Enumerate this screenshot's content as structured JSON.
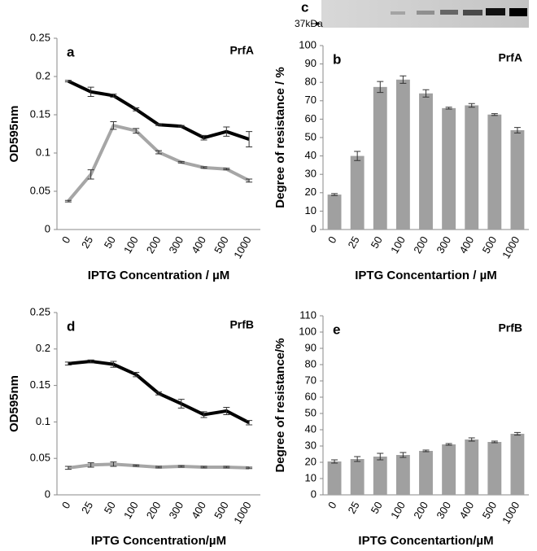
{
  "blot": {
    "panel": "c",
    "marker": "37kDa"
  },
  "chart_data": [
    {
      "type": "line",
      "panel": "a",
      "label": "PrfA",
      "x_label": "IPTG Concentration / µM",
      "y_label": "OD595nm",
      "categories": [
        "0",
        "25",
        "50",
        "100",
        "200",
        "300",
        "400",
        "500",
        "1000"
      ],
      "ylim": [
        0,
        0.25
      ],
      "yticks": [
        0,
        0.05,
        0.1,
        0.15,
        0.2,
        0.25
      ],
      "series": [
        {
          "color": "#000000",
          "values": [
            0.194,
            0.18,
            0.175,
            0.157,
            0.137,
            0.135,
            0.12,
            0.128,
            0.118
          ],
          "errors": [
            0.001,
            0.006,
            0.002,
            0.002,
            0.001,
            0.001,
            0.003,
            0.006,
            0.01
          ]
        },
        {
          "color": "#a6a6a6",
          "values": [
            0.037,
            0.072,
            0.136,
            0.129,
            0.101,
            0.088,
            0.081,
            0.079,
            0.064
          ],
          "errors": [
            0.001,
            0.006,
            0.005,
            0.003,
            0.002,
            0.001,
            0.001,
            0.001,
            0.002
          ]
        }
      ]
    },
    {
      "type": "bar",
      "panel": "b",
      "label": "PrfA",
      "x_label": "IPTG Concentartion / µM",
      "y_label": "Degree of resistance / %",
      "categories": [
        "0",
        "25",
        "50",
        "100",
        "200",
        "300",
        "400",
        "500",
        "1000"
      ],
      "ylim": [
        0,
        100
      ],
      "yticks": [
        0,
        10,
        20,
        30,
        40,
        50,
        60,
        70,
        80,
        90,
        100
      ],
      "series": [
        {
          "color": "#a0a0a0",
          "values": [
            19,
            40,
            77.5,
            81.5,
            74,
            66,
            67.5,
            62.5,
            54
          ],
          "errors": [
            0.5,
            2.5,
            3,
            2,
            2,
            0.5,
            1,
            0.5,
            1.5
          ]
        }
      ]
    },
    {
      "type": "line",
      "panel": "d",
      "label": "PrfB",
      "x_label": "IPTG Concentration/µM",
      "y_label": "OD595nm",
      "categories": [
        "0",
        "25",
        "50",
        "100",
        "200",
        "300",
        "400",
        "500",
        "1000"
      ],
      "ylim": [
        0,
        0.25
      ],
      "yticks": [
        0,
        0.05,
        0.1,
        0.15,
        0.2,
        0.25
      ],
      "series": [
        {
          "color": "#000000",
          "values": [
            0.18,
            0.183,
            0.179,
            0.165,
            0.139,
            0.125,
            0.11,
            0.115,
            0.099
          ],
          "errors": [
            0.002,
            0.002,
            0.004,
            0.003,
            0.002,
            0.006,
            0.004,
            0.005,
            0.003
          ]
        },
        {
          "color": "#a6a6a6",
          "values": [
            0.037,
            0.041,
            0.042,
            0.04,
            0.038,
            0.039,
            0.038,
            0.038,
            0.037
          ],
          "errors": [
            0.002,
            0.003,
            0.003,
            0.001,
            0.001,
            0.001,
            0.001,
            0.001,
            0.001
          ]
        }
      ]
    },
    {
      "type": "bar",
      "panel": "e",
      "label": "PrfB",
      "x_label": "IPTG Concentartion/µM",
      "y_label": "Degree of resistance/%",
      "categories": [
        "0",
        "25",
        "50",
        "100",
        "200",
        "300",
        "400",
        "500",
        "1000"
      ],
      "ylim": [
        0,
        110
      ],
      "yticks": [
        0,
        10,
        20,
        30,
        40,
        50,
        60,
        70,
        80,
        90,
        100,
        110
      ],
      "series": [
        {
          "color": "#a0a0a0",
          "values": [
            20.5,
            22,
            23.5,
            24.5,
            27,
            31,
            34,
            32.5,
            37.5
          ],
          "errors": [
            1,
            1.5,
            2,
            1.5,
            0.5,
            0.5,
            1,
            0.5,
            0.8
          ]
        }
      ]
    }
  ]
}
